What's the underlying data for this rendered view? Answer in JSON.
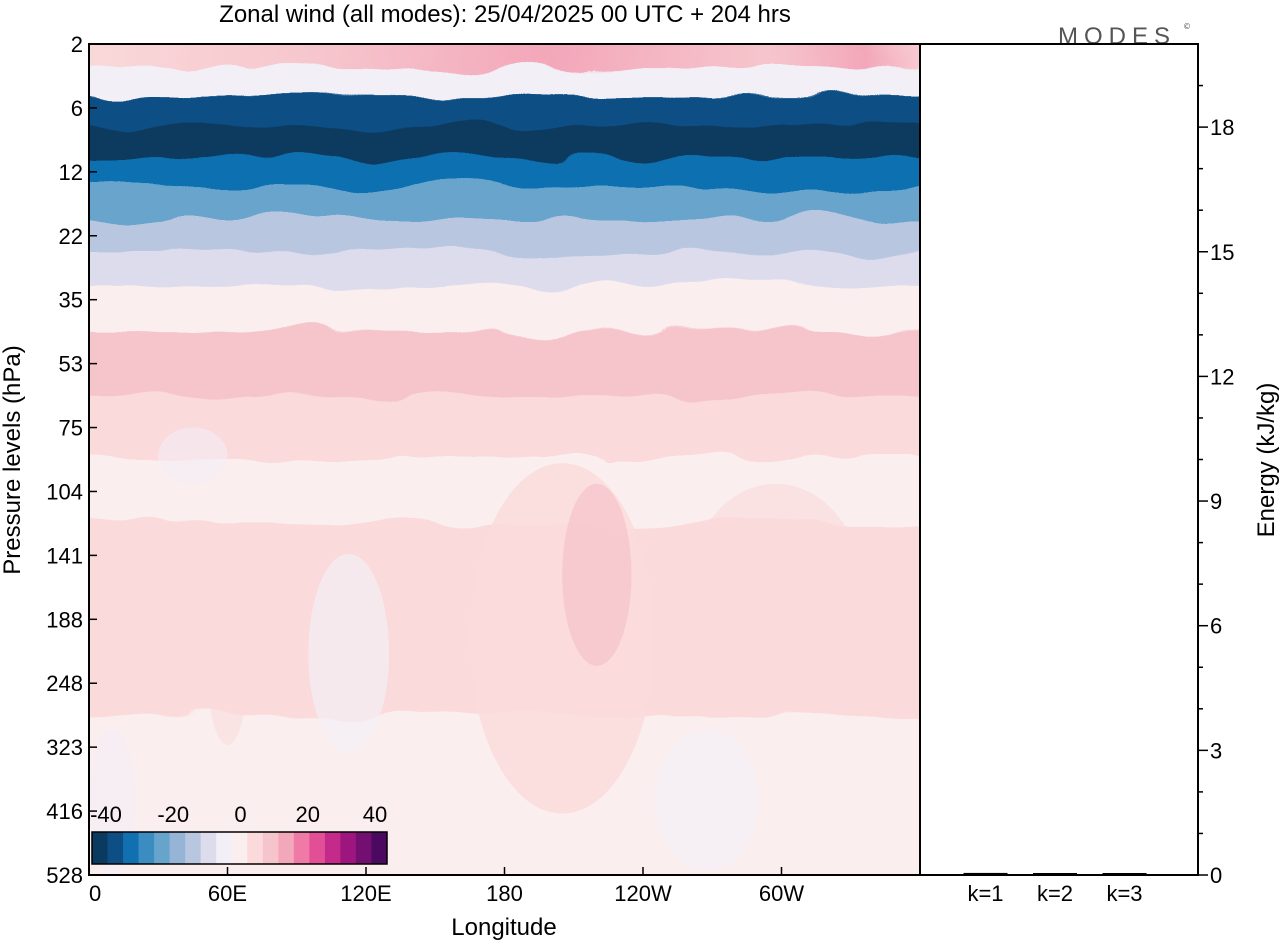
{
  "chart_data": [
    {
      "type": "heatmap",
      "title": "Zonal wind (all modes):  25/04/2025  00 UTC  + 204 hrs",
      "xlabel": "Longitude",
      "ylabel": "Pressure levels (hPa)",
      "x_ticks": [
        "0",
        "60E",
        "120E",
        "180",
        "120W",
        "60W"
      ],
      "x_tick_degrees": [
        0,
        60,
        120,
        180,
        240,
        300
      ],
      "xlim": [
        0,
        360
      ],
      "y_levels": [
        "2",
        "6",
        "12",
        "22",
        "35",
        "53",
        "75",
        "104",
        "141",
        "188",
        "248",
        "323",
        "416",
        "528"
      ],
      "y_scale": "pressure levels (top = 2 hPa, bottom = 528 hPa)",
      "colorbar": {
        "tick_labels": [
          "-40",
          "-20",
          "0",
          "20",
          "40"
        ],
        "tick_values": [
          -40,
          -20,
          0,
          20,
          40
        ],
        "colors": [
          "#0b3a60",
          "#0d4f84",
          "#1170b0",
          "#3a8cc1",
          "#67a4cc",
          "#96b5d6",
          "#b9c6e0",
          "#dcdcec",
          "#f3eff6",
          "#fbeeee",
          "#fadadb",
          "#f6c5cc",
          "#f3a7ba",
          "#ee7aa5",
          "#e24f97",
          "#c32a8a",
          "#9d157f",
          "#740f72",
          "#4b0a5f"
        ]
      },
      "value_profile": {
        "2": 10,
        "4": -4,
        "6": -32,
        "9": -38,
        "12": -28,
        "16": -22,
        "22": -12,
        "28": -7,
        "35": -2,
        "53": 7,
        "75": 5,
        "104": 2,
        "141": 4,
        "188": 4,
        "248": 3,
        "323": 2,
        "416": 1,
        "528": 0
      }
    },
    {
      "type": "bar",
      "categories": [
        "k=1",
        "k=2",
        "k=3"
      ],
      "values": [
        0.05,
        0.03,
        0.03
      ],
      "ylabel": "Energy (kJ/kg)",
      "ylim": [
        0,
        20
      ],
      "y_ticks": [
        0,
        3,
        6,
        9,
        12,
        15,
        18
      ]
    }
  ],
  "brand": "MODES"
}
